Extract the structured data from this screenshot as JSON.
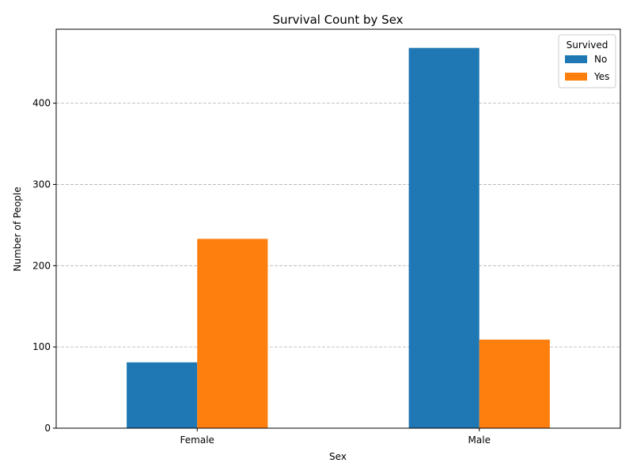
{
  "chart_data": {
    "type": "bar",
    "title": "Survival Count by Sex",
    "xlabel": "Sex",
    "ylabel": "Number of People",
    "categories": [
      "Female",
      "Male"
    ],
    "series": [
      {
        "name": "No",
        "values": [
          81,
          468
        ],
        "color": "#1f77b4"
      },
      {
        "name": "Yes",
        "values": [
          233,
          109
        ],
        "color": "#ff7f0e"
      }
    ],
    "ylim": [
      0,
      491
    ],
    "yticks": [
      0,
      100,
      200,
      300,
      400
    ],
    "grid": "y-dashed",
    "legend": {
      "title": "Survived",
      "position": "top-right"
    }
  }
}
